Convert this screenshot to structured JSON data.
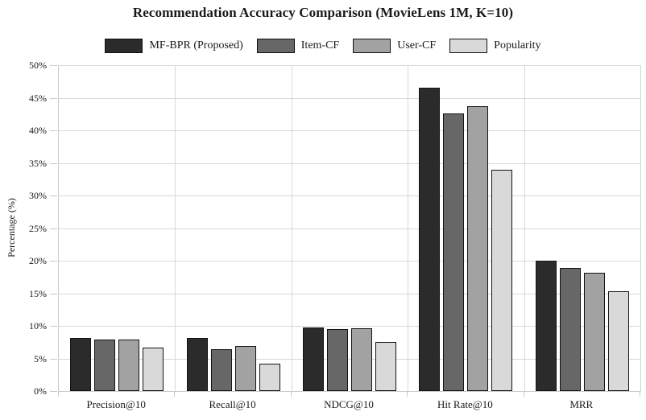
{
  "chart_data": {
    "type": "bar",
    "title": "Recommendation Accuracy Comparison (MovieLens 1M, K=10)",
    "xlabel": "",
    "ylabel": "Percentage (%)",
    "ylim": [
      0,
      50
    ],
    "ytick_step": 5,
    "ytick_suffix": "%",
    "grid": true,
    "legend_position": "top",
    "background_color": "#ffffff",
    "gridline_color": "#d8d8d8",
    "bar_border_color": "#141414",
    "categories": [
      "Precision@10",
      "Recall@10",
      "NDCG@10",
      "Hit Rate@10",
      "MRR"
    ],
    "series": [
      {
        "name": "MF-BPR (Proposed)",
        "color": "#2b2b2b",
        "values": [
          8.1,
          8.1,
          9.7,
          46.5,
          20.0
        ]
      },
      {
        "name": "Item-CF",
        "color": "#676767",
        "values": [
          7.9,
          6.4,
          9.5,
          42.6,
          18.9
        ]
      },
      {
        "name": "User-CF",
        "color": "#a2a2a2",
        "values": [
          7.9,
          6.9,
          9.6,
          43.7,
          18.1
        ]
      },
      {
        "name": "Popularity",
        "color": "#d9d9d9",
        "values": [
          6.7,
          4.2,
          7.5,
          34.0,
          15.3
        ]
      }
    ]
  }
}
